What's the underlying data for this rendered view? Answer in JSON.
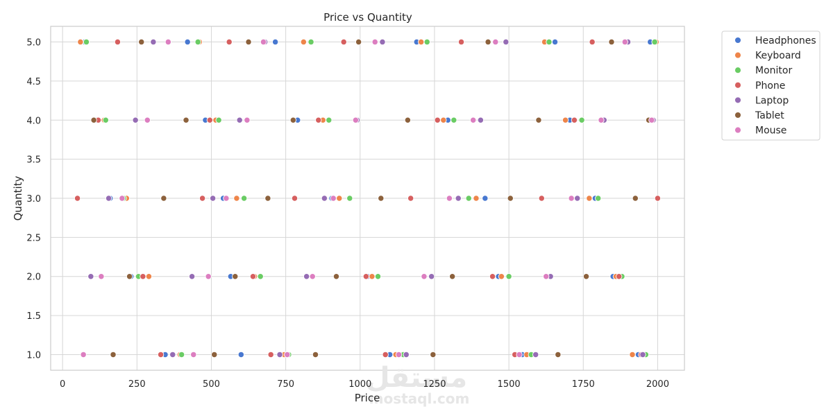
{
  "watermark": {
    "arabic": "مستقل",
    "latin": "mostaql.com"
  },
  "chart_data": {
    "type": "scatter",
    "title": "Price vs Quantity",
    "xlabel": "Price",
    "ylabel": "Quantity",
    "xlim": [
      -40,
      2090
    ],
    "ylim": [
      0.8,
      5.2
    ],
    "xticks": [
      0,
      250,
      500,
      750,
      1000,
      1250,
      1500,
      1750,
      2000
    ],
    "yticks": [
      1.0,
      1.5,
      2.0,
      2.5,
      3.0,
      3.5,
      4.0,
      4.5,
      5.0
    ],
    "xtick_labels": [
      "0",
      "250",
      "500",
      "750",
      "1000",
      "1250",
      "1500",
      "1750",
      "2000"
    ],
    "ytick_labels": [
      "1.0",
      "1.5",
      "2.0",
      "2.5",
      "3.0",
      "3.5",
      "4.0",
      "4.5",
      "5.0"
    ],
    "grid": true,
    "legend_position": "outside-top-right",
    "series": [
      {
        "name": "Headphones",
        "color": "#4878d0",
        "x": [
          75,
          110,
          160,
          230,
          345,
          420,
          480,
          540,
          565,
          600,
          715,
          790,
          905,
          1025,
          1100,
          1190,
          1295,
          1420,
          1465,
          1545,
          1655,
          1705,
          1790,
          1850,
          1935,
          1975
        ],
        "y": [
          5,
          4,
          3,
          2,
          1,
          5,
          4,
          3,
          2,
          1,
          5,
          4,
          3,
          2,
          1,
          5,
          4,
          3,
          2,
          1,
          5,
          4,
          3,
          2,
          1,
          5
        ]
      },
      {
        "name": "Keyboard",
        "color": "#ee854a",
        "x": [
          60,
          140,
          215,
          290,
          395,
          460,
          515,
          585,
          645,
          745,
          810,
          875,
          930,
          1040,
          1120,
          1205,
          1280,
          1390,
          1475,
          1560,
          1620,
          1690,
          1770,
          1860,
          1915,
          1995
        ],
        "y": [
          5,
          4,
          3,
          2,
          1,
          5,
          4,
          3,
          2,
          1,
          5,
          4,
          3,
          2,
          1,
          5,
          4,
          3,
          2,
          1,
          5,
          4,
          3,
          2,
          1,
          5
        ]
      },
      {
        "name": "Monitor",
        "color": "#6acc64",
        "x": [
          80,
          145,
          205,
          255,
          400,
          455,
          525,
          610,
          665,
          760,
          835,
          895,
          965,
          1060,
          1145,
          1225,
          1315,
          1365,
          1500,
          1575,
          1635,
          1745,
          1800,
          1880,
          1960,
          1990
        ],
        "y": [
          5,
          4,
          3,
          2,
          1,
          5,
          4,
          3,
          2,
          1,
          5,
          4,
          3,
          2,
          1,
          5,
          4,
          3,
          2,
          1,
          5,
          4,
          3,
          2,
          1,
          5
        ]
      },
      {
        "name": "Phone",
        "color": "#d65f5f",
        "x": [
          50,
          120,
          185,
          270,
          330,
          470,
          495,
          560,
          640,
          700,
          780,
          860,
          945,
          1020,
          1085,
          1170,
          1260,
          1340,
          1445,
          1520,
          1610,
          1720,
          1780,
          1870,
          1945,
          2000
        ],
        "y": [
          3,
          4,
          5,
          2,
          1,
          3,
          4,
          5,
          2,
          1,
          3,
          4,
          5,
          2,
          1,
          3,
          4,
          5,
          2,
          1,
          3,
          4,
          5,
          2,
          1,
          3
        ]
      },
      {
        "name": "Laptop",
        "color": "#956cb4",
        "x": [
          95,
          155,
          245,
          305,
          370,
          435,
          505,
          595,
          680,
          730,
          820,
          880,
          990,
          1075,
          1155,
          1240,
          1330,
          1405,
          1490,
          1590,
          1640,
          1730,
          1820,
          1900,
          1950,
          1985
        ],
        "y": [
          2,
          3,
          4,
          5,
          1,
          2,
          3,
          4,
          5,
          1,
          2,
          3,
          4,
          5,
          1,
          2,
          3,
          4,
          5,
          1,
          2,
          3,
          4,
          5,
          1,
          4
        ]
      },
      {
        "name": "Tablet",
        "color": "#8c613c",
        "x": [
          105,
          170,
          225,
          265,
          340,
          415,
          510,
          580,
          625,
          690,
          775,
          850,
          920,
          995,
          1070,
          1160,
          1245,
          1310,
          1430,
          1505,
          1600,
          1665,
          1760,
          1845,
          1925,
          1970
        ],
        "y": [
          4,
          1,
          2,
          5,
          3,
          4,
          1,
          2,
          5,
          3,
          4,
          1,
          2,
          5,
          3,
          4,
          1,
          2,
          5,
          3,
          4,
          1,
          2,
          5,
          3,
          4
        ]
      },
      {
        "name": "Mouse",
        "color": "#dc7ec0",
        "x": [
          70,
          130,
          200,
          285,
          355,
          440,
          490,
          550,
          620,
          675,
          755,
          840,
          910,
          985,
          1050,
          1130,
          1215,
          1300,
          1380,
          1455,
          1535,
          1625,
          1710,
          1810,
          1890,
          1980
        ],
        "y": [
          1,
          2,
          3,
          4,
          5,
          1,
          2,
          3,
          4,
          5,
          1,
          2,
          3,
          4,
          5,
          1,
          2,
          3,
          4,
          5,
          1,
          2,
          3,
          4,
          5,
          4
        ]
      }
    ]
  }
}
